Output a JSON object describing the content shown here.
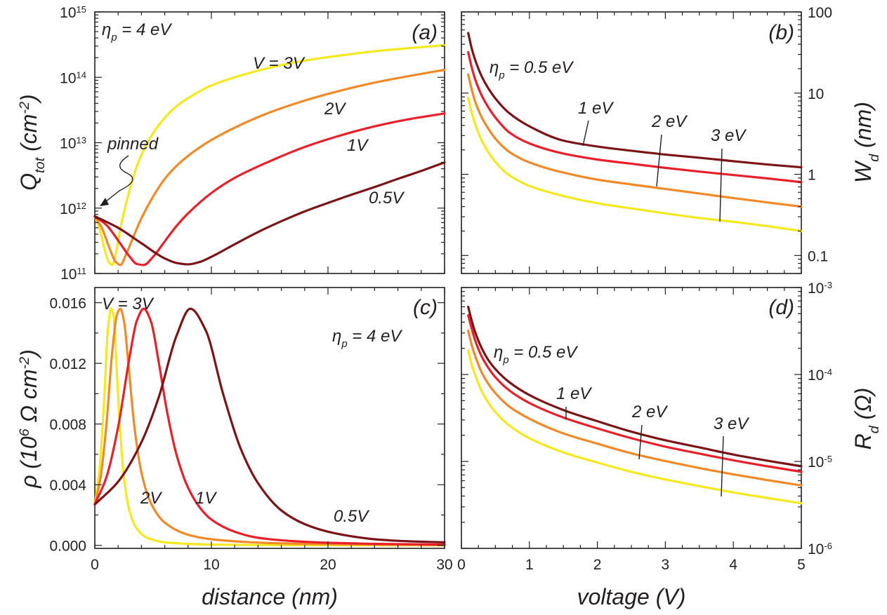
{
  "colors": {
    "v3": "#f4e81e",
    "v2": "#f08a28",
    "v1": "#e8202a",
    "v05": "#7b1416",
    "ink": "#231f20"
  },
  "chart_data": [
    {
      "id": "a",
      "type": "line",
      "panel_label": "(a)",
      "annotation": "η_p = 4 eV",
      "pinned_label": "pinned",
      "xlabel": "distance (nm)",
      "ylabel": "Q_tot (cm^-2)",
      "xlim": [
        0,
        30
      ],
      "ylim": [
        100000000000.0,
        1000000000000000.0
      ],
      "yscale": "log",
      "y_tick_labels": [
        "10^11",
        "10^12",
        "10^13",
        "10^14",
        "10^15"
      ],
      "series": [
        {
          "name": "V = 3V",
          "color_key": "v3",
          "x": [
            0,
            0.4,
            0.8,
            1.2,
            1.5,
            1.8,
            2.2,
            2.7,
            3.3,
            4,
            5,
            6,
            7,
            8,
            10,
            12,
            15,
            18,
            21,
            24,
            27,
            30
          ],
          "y": [
            750000000000.0,
            500000000000.0,
            250000000000.0,
            150000000000.0,
            135000000000.0,
            200000000000.0,
            500000000000.0,
            1200000000000.0,
            3000000000000.0,
            6500000000000.0,
            14000000000000.0,
            24000000000000.0,
            36000000000000.0,
            48000000000000.0,
            75000000000000.0,
            100000000000000.0,
            140000000000000.0,
            180000000000000.0,
            215000000000000.0,
            250000000000000.0,
            280000000000000.0,
            310000000000000.0
          ]
        },
        {
          "name": "2V",
          "color_key": "v2",
          "x": [
            0,
            0.6,
            1.2,
            1.8,
            2.2,
            2.7,
            3.3,
            4,
            5,
            6,
            7,
            8,
            10,
            12,
            15,
            18,
            21,
            24,
            27,
            30
          ],
          "y": [
            750000000000.0,
            500000000000.0,
            260000000000.0,
            150000000000.0,
            135000000000.0,
            200000000000.0,
            360000000000.0,
            700000000000.0,
            1500000000000.0,
            2800000000000.0,
            4400000000000.0,
            6300000000000.0,
            11000000000000.0,
            17000000000000.0,
            29000000000000.0,
            44000000000000.0,
            62000000000000.0,
            83000000000000.0,
            105000000000000.0,
            130000000000000.0
          ]
        },
        {
          "name": "1V",
          "color_key": "v1",
          "x": [
            0,
            1,
            2,
            3,
            3.6,
            4.2,
            5,
            6,
            7,
            8,
            10,
            12,
            15,
            18,
            21,
            24,
            27,
            30
          ],
          "y": [
            750000000000.0,
            550000000000.0,
            320000000000.0,
            180000000000.0,
            140000000000.0,
            135000000000.0,
            180000000000.0,
            310000000000.0,
            530000000000.0,
            830000000000.0,
            1700000000000.0,
            2900000000000.0,
            5200000000000.0,
            8600000000000.0,
            12800000000000.0,
            17800000000000.0,
            23000000000000.0,
            28000000000000.0
          ]
        },
        {
          "name": "0.5V",
          "color_key": "v05",
          "x": [
            0,
            2,
            4,
            6,
            7,
            8,
            9,
            10,
            12,
            14,
            16,
            18,
            20,
            22,
            24,
            26,
            28,
            30
          ],
          "y": [
            750000000000.0,
            500000000000.0,
            290000000000.0,
            170000000000.0,
            145000000000.0,
            138000000000.0,
            150000000000.0,
            180000000000.0,
            280000000000.0,
            430000000000.0,
            630000000000.0,
            890000000000.0,
            1200000000000.0,
            1600000000000.0,
            2100000000000.0,
            2800000000000.0,
            3700000000000.0,
            5000000000000.0
          ]
        }
      ],
      "labels": [
        "V = 3V",
        "2V",
        "1V",
        "0.5V"
      ]
    },
    {
      "id": "b",
      "type": "line",
      "panel_label": "(b)",
      "xlabel": "voltage (V)",
      "ylabel": "W_d (nm)",
      "xlim": [
        0,
        5
      ],
      "ylim": [
        0.06,
        100
      ],
      "yscale": "log",
      "y_tick_labels": [
        "0.1",
        "1",
        "10",
        "100"
      ],
      "series": [
        {
          "name": "η_p = 0.5 eV",
          "color_key": "v05",
          "x": [
            0.1,
            0.15,
            0.2,
            0.3,
            0.4,
            0.5,
            0.7,
            1,
            1.5,
            2,
            2.5,
            3,
            3.5,
            4,
            4.5,
            5
          ],
          "y": [
            55,
            36,
            26,
            16,
            11.3,
            8.6,
            5.7,
            3.9,
            2.6,
            2.2,
            1.95,
            1.75,
            1.6,
            1.45,
            1.32,
            1.22
          ]
        },
        {
          "name": "1 eV",
          "color_key": "v1",
          "x": [
            0.1,
            0.15,
            0.2,
            0.3,
            0.4,
            0.5,
            0.7,
            1,
            1.5,
            2,
            2.5,
            3,
            3.5,
            4,
            4.5,
            5
          ],
          "y": [
            32,
            21,
            15,
            9.3,
            6.6,
            5,
            3.3,
            2.4,
            1.8,
            1.52,
            1.35,
            1.2,
            1.08,
            0.98,
            0.89,
            0.8
          ]
        },
        {
          "name": "2 eV",
          "color_key": "v2",
          "x": [
            0.1,
            0.15,
            0.2,
            0.3,
            0.4,
            0.5,
            0.7,
            1,
            1.5,
            2,
            2.5,
            3,
            3.5,
            4,
            4.5,
            5
          ],
          "y": [
            17,
            11.2,
            8,
            5,
            3.6,
            2.75,
            1.9,
            1.4,
            1.05,
            0.86,
            0.75,
            0.66,
            0.58,
            0.51,
            0.45,
            0.4
          ]
        },
        {
          "name": "3 eV",
          "color_key": "v3",
          "x": [
            0.1,
            0.15,
            0.2,
            0.3,
            0.4,
            0.5,
            0.7,
            1,
            1.5,
            2,
            2.5,
            3,
            3.5,
            4,
            4.5,
            5
          ],
          "y": [
            8.8,
            5.8,
            4.2,
            2.6,
            1.85,
            1.42,
            0.98,
            0.72,
            0.54,
            0.44,
            0.38,
            0.33,
            0.29,
            0.26,
            0.23,
            0.2
          ]
        }
      ],
      "labels": [
        "η_p = 0.5 eV",
        "1 eV",
        "2 eV",
        "3 eV"
      ]
    },
    {
      "id": "c",
      "type": "line",
      "panel_label": "(c)",
      "annotation": "η_p = 4 eV",
      "xlabel": "distance (nm)",
      "ylabel": "ρ (10^6 Ω cm^-2)",
      "xlim": [
        0,
        30
      ],
      "ylim": [
        -0.0002,
        0.017
      ],
      "x_tick_labels": [
        "0",
        "10",
        "20",
        "30"
      ],
      "y_tick_labels": [
        "0.000",
        "0.004",
        "0.008",
        "0.012",
        "0.016"
      ],
      "series": [
        {
          "name": "V = 3V",
          "color_key": "v3",
          "x": [
            0,
            0.4,
            0.8,
            1.1,
            1.4,
            1.6,
            1.8,
            2.1,
            2.5,
            3,
            3.6,
            4.5,
            6,
            8,
            10,
            15,
            20,
            30
          ],
          "y": [
            0.0027,
            0.005,
            0.0095,
            0.014,
            0.0156,
            0.0152,
            0.0128,
            0.0085,
            0.0045,
            0.0022,
            0.0011,
            0.0005,
            0.0002,
            0.0001,
            5e-05,
            2e-05,
            1e-05,
            0
          ]
        },
        {
          "name": "2V",
          "color_key": "v2",
          "x": [
            0,
            0.5,
            1,
            1.5,
            1.9,
            2.2,
            2.5,
            2.9,
            3.4,
            4,
            4.8,
            6,
            8,
            10,
            13,
            16,
            20,
            25,
            30
          ],
          "y": [
            0.0027,
            0.0045,
            0.008,
            0.0128,
            0.0152,
            0.0156,
            0.0148,
            0.0118,
            0.0078,
            0.0048,
            0.0028,
            0.0015,
            0.0007,
            0.0004,
            0.00022,
            0.00013,
            8e-05,
            4e-05,
            2e-05
          ]
        },
        {
          "name": "1V",
          "color_key": "v1",
          "x": [
            0,
            1,
            2,
            3,
            3.6,
            4.2,
            4.8,
            5.5,
            6.2,
            7,
            8,
            9,
            10,
            12,
            14,
            17,
            20,
            25,
            30
          ],
          "y": [
            0.0027,
            0.0045,
            0.0078,
            0.0125,
            0.0148,
            0.0156,
            0.0148,
            0.012,
            0.0088,
            0.006,
            0.0038,
            0.0025,
            0.0017,
            0.0009,
            0.0005,
            0.00028,
            0.00017,
            9e-05,
            5e-05
          ]
        },
        {
          "name": "0.5V",
          "color_key": "v05",
          "x": [
            0,
            2,
            4,
            5.5,
            7,
            8.2,
            9.5,
            11,
            12.5,
            14,
            16,
            18,
            20,
            22,
            24,
            26,
            28,
            30
          ],
          "y": [
            0.0027,
            0.0042,
            0.0068,
            0.0098,
            0.0138,
            0.0156,
            0.0142,
            0.01,
            0.0064,
            0.0041,
            0.0023,
            0.0014,
            0.0009,
            0.0006,
            0.0004,
            0.0003,
            0.00024,
            0.0002
          ]
        }
      ],
      "labels": [
        "V = 3V",
        "2V",
        "1V",
        "0.5V"
      ]
    },
    {
      "id": "d",
      "type": "line",
      "panel_label": "(d)",
      "xlabel": "voltage (V)",
      "ylabel": "R_d (Ω)",
      "xlim": [
        0,
        5
      ],
      "ylim": [
        1e-06,
        0.001
      ],
      "yscale": "log",
      "x_tick_labels": [
        "0",
        "1",
        "2",
        "3",
        "4",
        "5"
      ],
      "y_tick_labels": [
        "10^-6",
        "10^-5",
        "10^-4",
        "10^-3"
      ],
      "series": [
        {
          "name": "η_p = 0.5 eV",
          "color_key": "v05",
          "x": [
            0.1,
            0.15,
            0.2,
            0.3,
            0.4,
            0.5,
            0.7,
            1,
            1.5,
            2,
            2.5,
            3,
            3.5,
            4,
            4.5,
            5
          ],
          "y": [
            0.0006,
            0.00042,
            0.00031,
            0.0002,
            0.000145,
            0.000115,
            8.2e-05,
            5.8e-05,
            3.9e-05,
            2.9e-05,
            2.2e-05,
            1.75e-05,
            1.45e-05,
            1.2e-05,
            1.02e-05,
            8.8e-06
          ]
        },
        {
          "name": "1 eV",
          "color_key": "v1",
          "x": [
            0.1,
            0.15,
            0.2,
            0.3,
            0.4,
            0.5,
            0.7,
            1,
            1.5,
            2,
            2.5,
            3,
            3.5,
            4,
            4.5,
            5
          ],
          "y": [
            0.00048,
            0.00034,
            0.00025,
            0.00016,
            0.000118,
            9.3e-05,
            6.6e-05,
            4.7e-05,
            3.2e-05,
            2.4e-05,
            1.85e-05,
            1.48e-05,
            1.23e-05,
            1.03e-05,
            8.8e-06,
            7.6e-06
          ]
        },
        {
          "name": "2 eV",
          "color_key": "v2",
          "x": [
            0.1,
            0.15,
            0.2,
            0.3,
            0.4,
            0.5,
            0.7,
            1,
            1.5,
            2,
            2.5,
            3,
            3.5,
            4,
            4.5,
            5
          ],
          "y": [
            0.00032,
            0.00022,
            0.000165,
            0.000105,
            7.7e-05,
            6.1e-05,
            4.3e-05,
            3.1e-05,
            2.1e-05,
            1.6e-05,
            1.24e-05,
            1.01e-05,
            8.4e-06,
            7.1e-06,
            6.1e-06,
            5.3e-06
          ]
        },
        {
          "name": "3 eV",
          "color_key": "v3",
          "x": [
            0.1,
            0.15,
            0.2,
            0.3,
            0.4,
            0.5,
            0.7,
            1,
            1.5,
            2,
            2.5,
            3,
            3.5,
            4,
            4.5,
            5
          ],
          "y": [
            0.00019,
            0.00013,
            0.0001,
            6.4e-05,
            4.7e-05,
            3.7e-05,
            2.6e-05,
            1.85e-05,
            1.27e-05,
            9.7e-06,
            7.6e-06,
            6.2e-06,
            5.2e-06,
            4.4e-06,
            3.8e-06,
            3.3e-06
          ]
        }
      ],
      "labels": [
        "η_p = 0.5 eV",
        "1 eV",
        "2 eV",
        "3 eV"
      ]
    }
  ]
}
